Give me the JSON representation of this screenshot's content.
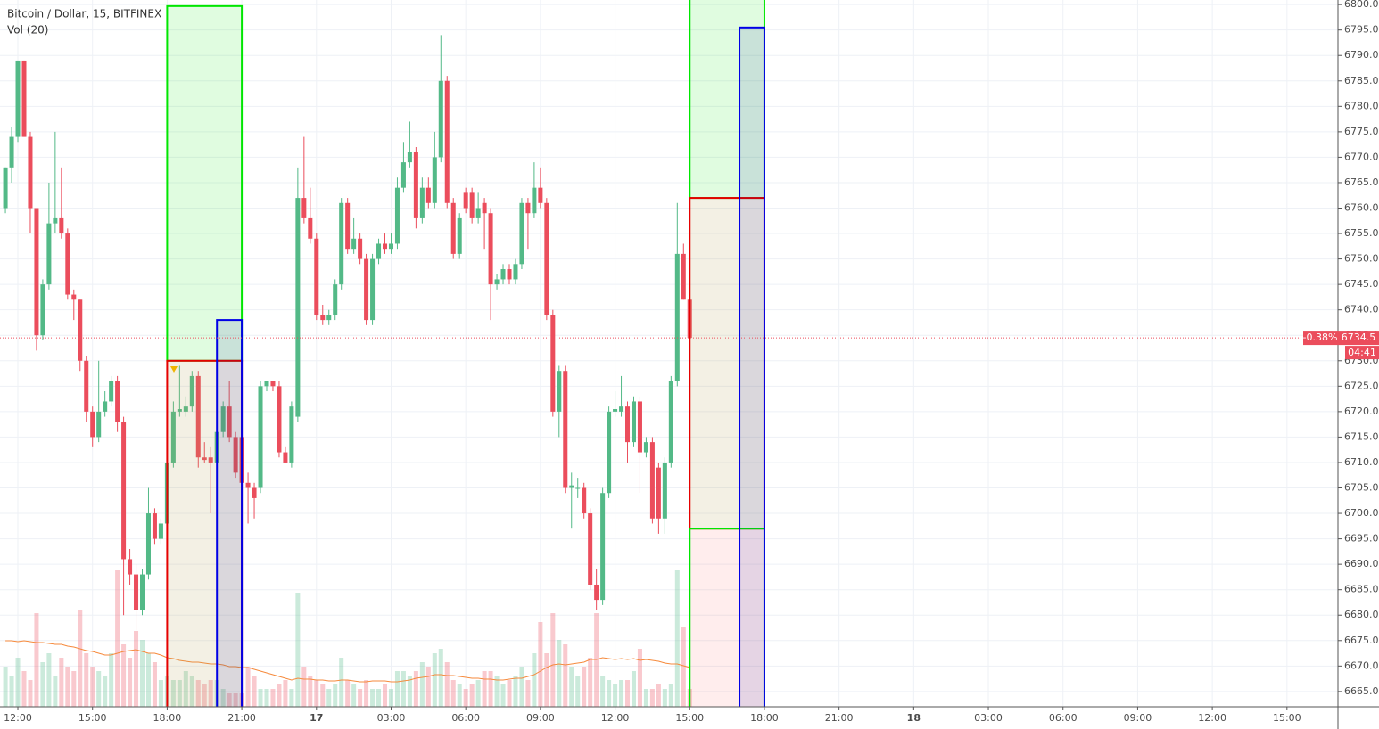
{
  "chart_data": {
    "type": "candlestick",
    "title": "Bitcoin / Dollar, 15, BITFINEX",
    "subtitle": "Vol (20)",
    "up_color": "#53b987",
    "down_color": "#eb4d5c",
    "ma_color": "#f68a3c",
    "x": [
      -2,
      -1,
      0,
      1,
      2,
      3,
      4,
      5,
      6,
      7,
      8,
      9,
      10,
      11,
      12,
      13,
      14,
      15,
      16,
      17,
      18,
      19,
      20,
      21,
      22,
      23,
      24,
      25,
      26,
      27,
      28,
      29,
      30,
      31,
      32,
      33,
      34,
      35,
      36,
      37,
      38,
      39,
      40,
      41,
      42,
      43,
      44,
      45,
      46,
      47,
      48,
      49,
      50,
      51,
      52,
      53,
      54,
      55,
      56,
      57,
      58,
      59,
      60,
      61,
      62,
      63,
      64,
      65,
      66,
      67,
      68,
      69,
      70,
      71,
      72,
      73,
      74,
      75,
      76,
      77,
      78,
      79,
      80,
      81,
      82,
      83,
      84,
      85,
      86,
      87,
      88,
      89,
      90,
      91,
      92,
      93,
      94,
      95,
      96,
      97,
      98,
      99,
      100,
      101,
      102,
      103,
      104,
      105,
      106,
      107,
      108
    ],
    "candles": [
      [
        6760,
        6768,
        6759,
        6768
      ],
      [
        6768,
        6776,
        6765,
        6774
      ],
      [
        6774,
        6789,
        6773,
        6789
      ],
      [
        6789,
        6789,
        6774,
        6774
      ],
      [
        6774,
        6775,
        6755,
        6760
      ],
      [
        6760,
        6760,
        6732,
        6735
      ],
      [
        6735,
        6746,
        6734,
        6745
      ],
      [
        6745,
        6765,
        6744,
        6757
      ],
      [
        6757,
        6775,
        6755,
        6758
      ],
      [
        6758,
        6768,
        6754,
        6755
      ],
      [
        6755,
        6756,
        6742,
        6743
      ],
      [
        6743,
        6744,
        6738,
        6742
      ],
      [
        6742,
        6742,
        6728,
        6730
      ],
      [
        6730,
        6731,
        6718,
        6720
      ],
      [
        6720,
        6721,
        6713,
        6715
      ],
      [
        6715,
        6730,
        6714,
        6720
      ],
      [
        6720,
        6724,
        6719,
        6722
      ],
      [
        6722,
        6727,
        6721,
        6726
      ],
      [
        6726,
        6727,
        6716,
        6718
      ],
      [
        6718,
        6719,
        6680,
        6691
      ],
      [
        6691,
        6693,
        6686,
        6688
      ],
      [
        6688,
        6690,
        6677,
        6681
      ],
      [
        6681,
        6689,
        6680,
        6688
      ],
      [
        6688,
        6705,
        6687,
        6700
      ],
      [
        6700,
        6701,
        6694,
        6695
      ],
      [
        6695,
        6699,
        6694,
        6698
      ],
      [
        6698,
        6711,
        6697,
        6710
      ],
      [
        6710,
        6722,
        6709,
        6720
      ],
      [
        6720,
        6729,
        6719,
        6720.5
      ],
      [
        6720,
        6723,
        6719,
        6721
      ],
      [
        6721,
        6728,
        6720,
        6727
      ],
      [
        6727,
        6728,
        6709,
        6711
      ],
      [
        6711,
        6714,
        6710,
        6710.5
      ],
      [
        6711,
        6713,
        6700,
        6710
      ],
      [
        6710,
        6717,
        6709,
        6716
      ],
      [
        6716,
        6722,
        6715,
        6721
      ],
      [
        6721,
        6726,
        6714,
        6715
      ],
      [
        6715,
        6716,
        6707,
        6708
      ],
      [
        6715,
        6716,
        6705,
        6706
      ],
      [
        6706,
        6708,
        6698,
        6705
      ],
      [
        6705,
        6706,
        6699,
        6703
      ],
      [
        6705,
        6726,
        6704,
        6725
      ],
      [
        6725,
        6726,
        6724,
        6726
      ],
      [
        6726,
        6726,
        6724,
        6725
      ],
      [
        6725,
        6726,
        6711,
        6712
      ],
      [
        6712,
        6713,
        6710,
        6710
      ],
      [
        6710,
        6722,
        6709,
        6721
      ],
      [
        6719,
        6768,
        6718,
        6762
      ],
      [
        6762,
        6774,
        6757,
        6758
      ],
      [
        6758,
        6764,
        6753,
        6754
      ],
      [
        6754,
        6755,
        6738,
        6739
      ],
      [
        6739,
        6741,
        6737,
        6738
      ],
      [
        6738,
        6740,
        6737,
        6739
      ],
      [
        6739,
        6746,
        6738,
        6745
      ],
      [
        6745,
        6762,
        6744,
        6761
      ],
      [
        6761,
        6762,
        6751,
        6752
      ],
      [
        6752,
        6758,
        6751,
        6754
      ],
      [
        6754,
        6755,
        6749,
        6750
      ],
      [
        6750,
        6751,
        6737,
        6738
      ],
      [
        6738,
        6751,
        6737,
        6750
      ],
      [
        6750,
        6754,
        6749,
        6753
      ],
      [
        6753,
        6755,
        6751,
        6752
      ],
      [
        6752,
        6755,
        6751,
        6753
      ],
      [
        6753,
        6766,
        6752,
        6764
      ],
      [
        6764,
        6773,
        6763,
        6769
      ],
      [
        6769,
        6777,
        6768,
        6771
      ],
      [
        6771,
        6772,
        6756,
        6758
      ],
      [
        6758,
        6766,
        6757,
        6764
      ],
      [
        6764,
        6766,
        6760,
        6761
      ],
      [
        6761,
        6775,
        6760,
        6770
      ],
      [
        6770,
        6794,
        6769,
        6785
      ],
      [
        6785,
        6786,
        6760,
        6761
      ],
      [
        6761,
        6762,
        6750,
        6751
      ],
      [
        6751,
        6759,
        6750,
        6758
      ],
      [
        6763,
        6764,
        6759,
        6760
      ],
      [
        6763,
        6764,
        6757,
        6758
      ],
      [
        6758,
        6763,
        6757,
        6760
      ],
      [
        6761,
        6762,
        6752,
        6759
      ],
      [
        6759,
        6760,
        6738,
        6745
      ],
      [
        6745,
        6747,
        6744,
        6746
      ],
      [
        6746,
        6749,
        6745,
        6748
      ],
      [
        6748,
        6749,
        6745,
        6746
      ],
      [
        6746,
        6750,
        6745,
        6749
      ],
      [
        6749,
        6762,
        6748,
        6761
      ],
      [
        6761,
        6762,
        6752,
        6759
      ],
      [
        6759,
        6769,
        6758,
        6764
      ],
      [
        6764,
        6768,
        6760,
        6761
      ],
      [
        6761,
        6762,
        6738,
        6739
      ],
      [
        6739,
        6740,
        6719,
        6720
      ],
      [
        6720,
        6729,
        6715,
        6728
      ],
      [
        6728,
        6729,
        6704,
        6705
      ],
      [
        6705,
        6708,
        6697,
        6705.5
      ],
      [
        6705,
        6707,
        6703,
        6705
      ],
      [
        6705,
        6706,
        6699,
        6700
      ],
      [
        6700,
        6701,
        6685,
        6686
      ],
      [
        6686,
        6689,
        6681,
        6683
      ],
      [
        6683,
        6705,
        6682,
        6704
      ],
      [
        6704,
        6721,
        6703,
        6720
      ],
      [
        6720,
        6724,
        6719,
        6720.5
      ],
      [
        6720,
        6727,
        6719,
        6721
      ],
      [
        6721,
        6722,
        6710,
        6714
      ],
      [
        6714,
        6723,
        6713,
        6722
      ],
      [
        6722,
        6723,
        6704,
        6712
      ],
      [
        6712,
        6715,
        6711,
        6714
      ],
      [
        6714,
        6715,
        6698,
        6699
      ],
      [
        6709,
        6710,
        6696,
        6699
      ],
      [
        6699,
        6711,
        6696,
        6710
      ],
      [
        6710,
        6727,
        6709,
        6726
      ],
      [
        6726,
        6761,
        6725,
        6751
      ],
      [
        6751,
        6753,
        6742,
        6742
      ],
      [
        6742,
        6743,
        6733,
        6734.5
      ]
    ],
    "volume": [
      45,
      35,
      55,
      40,
      30,
      105,
      50,
      60,
      35,
      55,
      45,
      40,
      108,
      60,
      45,
      40,
      35,
      60,
      153,
      70,
      55,
      85,
      75,
      60,
      50,
      30,
      35,
      30,
      30,
      40,
      35,
      30,
      25,
      30,
      30,
      20,
      15,
      15,
      15,
      45,
      35,
      20,
      20,
      20,
      25,
      30,
      20,
      128,
      45,
      35,
      30,
      25,
      20,
      25,
      55,
      30,
      25,
      20,
      30,
      20,
      20,
      25,
      20,
      40,
      40,
      35,
      40,
      50,
      45,
      60,
      65,
      50,
      30,
      25,
      20,
      25,
      30,
      40,
      40,
      35,
      25,
      30,
      35,
      45,
      30,
      60,
      95,
      60,
      105,
      75,
      70,
      45,
      35,
      45,
      55,
      105,
      35,
      30,
      25,
      30,
      30,
      40,
      65,
      20,
      20,
      25,
      20,
      25,
      153,
      90,
      20
    ],
    "volume_ma": [
      74,
      74,
      73,
      74,
      73,
      72,
      72,
      71,
      70,
      70,
      68,
      67,
      65,
      63,
      62,
      60,
      58,
      58,
      60,
      62,
      63,
      64,
      62,
      60,
      60,
      58,
      55,
      54,
      52,
      51,
      50,
      50,
      49,
      48,
      48,
      47,
      45,
      45,
      44,
      44,
      42,
      40,
      38,
      36,
      34,
      32,
      30,
      32,
      31,
      31,
      30,
      30,
      29,
      29,
      30,
      30,
      29,
      28,
      28,
      29,
      29,
      29,
      28,
      28,
      29,
      30,
      32,
      33,
      34,
      36,
      36,
      35,
      35,
      34,
      33,
      32,
      32,
      31,
      31,
      30,
      30,
      31,
      32,
      32,
      34,
      36,
      40,
      44,
      47,
      48,
      47,
      48,
      49,
      50,
      53,
      53,
      55,
      54,
      53,
      54,
      53,
      54,
      52,
      53,
      52,
      51,
      49,
      48,
      48,
      46,
      44
    ],
    "zones": [
      {
        "x": [
          24,
          36
        ],
        "top": 6799.7,
        "bottom": 6730,
        "color": "#00e600",
        "fill": "rgba(0,230,0,0.12)"
      },
      {
        "x": [
          24,
          36
        ],
        "top": 6730,
        "bottom": 6660,
        "color": "#e60000",
        "fill": "rgba(180,160,90,0.16)"
      },
      {
        "x": [
          32,
          36
        ],
        "top": 6738,
        "bottom": 6660,
        "color": "#0000e6",
        "fill": "rgba(0,0,160,0.10)"
      },
      {
        "x": [
          108,
          120
        ],
        "top": 6805,
        "bottom": 6762,
        "color": "#00e600",
        "fill": "rgba(0,230,0,0.12)"
      },
      {
        "x": [
          108,
          120
        ],
        "top": 6762,
        "bottom": 6697,
        "color": "#e60000",
        "fill": "rgba(180,160,90,0.16)"
      },
      {
        "x": [
          108,
          120
        ],
        "top": 6697,
        "bottom": 6660,
        "color": "#00e600",
        "fill": "rgba(255,0,0,0.07)"
      },
      {
        "x": [
          116,
          120
        ],
        "top": 6795.5,
        "bottom": 6660,
        "color": "#0000e6",
        "fill": "rgba(0,0,160,0.10)"
      }
    ],
    "last": 6734.5,
    "last_change": "-0.38%",
    "countdown": "04:41",
    "xlim": [
      -2.87,
      212.2
    ],
    "ylim": [
      6662,
      6800.9
    ],
    "xticks": [
      {
        "value": 0,
        "label": "12:00"
      },
      {
        "value": 12,
        "label": "15:00"
      },
      {
        "value": 24,
        "label": "18:00"
      },
      {
        "value": 36,
        "label": "21:00"
      },
      {
        "value": 48,
        "label": "17"
      },
      {
        "value": 60,
        "label": "03:00"
      },
      {
        "value": 72,
        "label": "06:00"
      },
      {
        "value": 84,
        "label": "09:00"
      },
      {
        "value": 96,
        "label": "12:00"
      },
      {
        "value": 108,
        "label": "15:00"
      },
      {
        "value": 120,
        "label": "18:00"
      },
      {
        "value": 132,
        "label": "21:00"
      },
      {
        "value": 144,
        "label": "18"
      },
      {
        "value": 156,
        "label": "03:00"
      },
      {
        "value": 168,
        "label": "06:00"
      },
      {
        "value": 180,
        "label": "09:00"
      },
      {
        "value": 192,
        "label": "12:00"
      },
      {
        "value": 204,
        "label": "15:00"
      }
    ],
    "yticks": [
      {
        "value": 6665,
        "label": "6665.0"
      },
      {
        "value": 6670,
        "label": "6670.0"
      },
      {
        "value": 6675,
        "label": "6675.0"
      },
      {
        "value": 6680,
        "label": "6680.0"
      },
      {
        "value": 6685,
        "label": "6685.0"
      },
      {
        "value": 6690,
        "label": "6690.0"
      },
      {
        "value": 6695,
        "label": "6695.0"
      },
      {
        "value": 6700,
        "label": "6700.0"
      },
      {
        "value": 6705,
        "label": "6705.0"
      },
      {
        "value": 6710,
        "label": "6710.0"
      },
      {
        "value": 6715,
        "label": "6715.0"
      },
      {
        "value": 6720,
        "label": "6720.0"
      },
      {
        "value": 6725,
        "label": "6725.0"
      },
      {
        "value": 6730,
        "label": "6730.0"
      },
      {
        "value": 6735,
        "label": "6735.0"
      },
      {
        "value": 6740,
        "label": "6740.0"
      },
      {
        "value": 6745,
        "label": "6745.0"
      },
      {
        "value": 6750,
        "label": "6750.0"
      },
      {
        "value": 6755,
        "label": "6755.0"
      },
      {
        "value": 6760,
        "label": "6760.0"
      },
      {
        "value": 6765,
        "label": "6765.0"
      },
      {
        "value": 6770,
        "label": "6770.0"
      },
      {
        "value": 6775,
        "label": "6775.0"
      },
      {
        "value": 6780,
        "label": "6780.0"
      },
      {
        "value": 6785,
        "label": "6785.0"
      },
      {
        "value": 6790,
        "label": "6790.0"
      },
      {
        "value": 6795,
        "label": "6795.0"
      },
      {
        "value": 6800,
        "label": "6800.0"
      }
    ],
    "grid": true
  }
}
